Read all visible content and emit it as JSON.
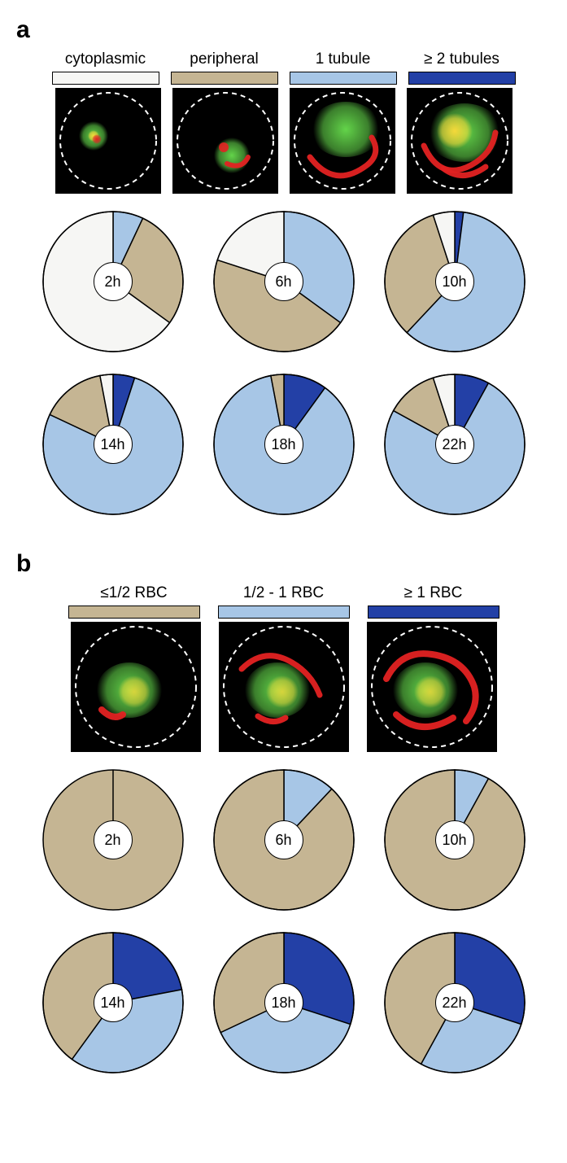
{
  "colors": {
    "cytoplasmic": "#f6f6f4",
    "peripheral": "#c5b593",
    "one_tubule": "#a7c6e6",
    "two_tubules": "#2340a6",
    "stroke": "#000000",
    "cell_bg": "#000000",
    "green": "#63d44a",
    "red": "#e32222",
    "yellow": "#f5d93a",
    "dash": "#ffffff"
  },
  "panel_a": {
    "label": "a",
    "legend": [
      {
        "text": "cytoplasmic",
        "color_key": "cytoplasmic"
      },
      {
        "text": "peripheral",
        "color_key": "peripheral"
      },
      {
        "text": "1 tubule",
        "color_key": "one_tubule"
      },
      {
        "text": "≥ 2 tubules",
        "color_key": "two_tubules"
      }
    ],
    "thumbs": [
      "cytoplasmic",
      "peripheral",
      "one_tubule",
      "two_tubules"
    ],
    "pies": [
      {
        "label": "2h",
        "slices": [
          {
            "k": "one_tubule",
            "v": 7
          },
          {
            "k": "peripheral",
            "v": 28
          },
          {
            "k": "cytoplasmic",
            "v": 65
          }
        ]
      },
      {
        "label": "6h",
        "slices": [
          {
            "k": "one_tubule",
            "v": 35
          },
          {
            "k": "peripheral",
            "v": 45
          },
          {
            "k": "cytoplasmic",
            "v": 20
          }
        ]
      },
      {
        "label": "10h",
        "slices": [
          {
            "k": "two_tubules",
            "v": 2
          },
          {
            "k": "one_tubule",
            "v": 60
          },
          {
            "k": "peripheral",
            "v": 33
          },
          {
            "k": "cytoplasmic",
            "v": 5
          }
        ]
      },
      {
        "label": "14h",
        "slices": [
          {
            "k": "two_tubules",
            "v": 5
          },
          {
            "k": "one_tubule",
            "v": 77
          },
          {
            "k": "peripheral",
            "v": 15
          },
          {
            "k": "cytoplasmic",
            "v": 3
          }
        ]
      },
      {
        "label": "18h",
        "slices": [
          {
            "k": "two_tubules",
            "v": 10
          },
          {
            "k": "one_tubule",
            "v": 87
          },
          {
            "k": "peripheral",
            "v": 3
          }
        ]
      },
      {
        "label": "22h",
        "slices": [
          {
            "k": "two_tubules",
            "v": 8
          },
          {
            "k": "one_tubule",
            "v": 75
          },
          {
            "k": "peripheral",
            "v": 12
          },
          {
            "k": "cytoplasmic",
            "v": 5
          }
        ]
      }
    ]
  },
  "panel_b": {
    "label": "b",
    "legend": [
      {
        "text": "≤1/2 RBC",
        "color_key": "peripheral"
      },
      {
        "text": "1/2 - 1 RBC",
        "color_key": "one_tubule"
      },
      {
        "text": "≥ 1 RBC",
        "color_key": "two_tubules"
      }
    ],
    "thumbs": [
      "short",
      "medium",
      "long"
    ],
    "pies": [
      {
        "label": "2h",
        "slices": [
          {
            "k": "peripheral",
            "v": 100
          }
        ]
      },
      {
        "label": "6h",
        "slices": [
          {
            "k": "one_tubule",
            "v": 12
          },
          {
            "k": "peripheral",
            "v": 88
          }
        ]
      },
      {
        "label": "10h",
        "slices": [
          {
            "k": "one_tubule",
            "v": 8
          },
          {
            "k": "peripheral",
            "v": 92
          }
        ]
      },
      {
        "label": "14h",
        "slices": [
          {
            "k": "two_tubules",
            "v": 22
          },
          {
            "k": "one_tubule",
            "v": 38
          },
          {
            "k": "peripheral",
            "v": 40
          }
        ]
      },
      {
        "label": "18h",
        "slices": [
          {
            "k": "two_tubules",
            "v": 30
          },
          {
            "k": "one_tubule",
            "v": 38
          },
          {
            "k": "peripheral",
            "v": 32
          }
        ]
      },
      {
        "label": "22h",
        "slices": [
          {
            "k": "two_tubules",
            "v": 30
          },
          {
            "k": "one_tubule",
            "v": 28
          },
          {
            "k": "peripheral",
            "v": 42
          }
        ]
      }
    ]
  },
  "style": {
    "legend_fontsize": 19,
    "pie_label_fontsize": 18,
    "panel_label_fontsize": 30,
    "pie_stroke_width": 1.5,
    "pie_outer_radius": 86,
    "pie_hole_radius": 24,
    "thumb_size_a": 130,
    "thumb_size_b": 160
  }
}
